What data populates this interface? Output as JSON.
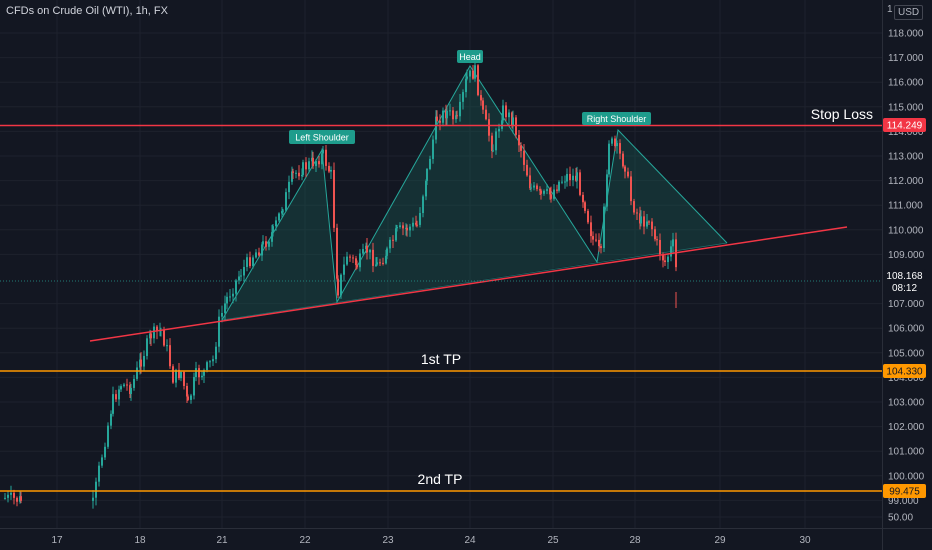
{
  "header": {
    "symbol_title": "CFDs on Crude Oil (WTI), 1h, FX",
    "currency": "USD"
  },
  "colors": {
    "background": "#131722",
    "up": "#26a69a",
    "down": "#ef5350",
    "stop_loss": "#f23645",
    "take_profit": "#ff9800",
    "trendline": "#f23645",
    "pattern_fill": "#1b5e56",
    "pattern_stroke": "#26a69a"
  },
  "price_axis": {
    "ticks": [
      "118.000",
      "117.000",
      "116.000",
      "115.000",
      "114.000",
      "113.000",
      "112.000",
      "111.000",
      "110.000",
      "109.000",
      "107.000",
      "106.000",
      "105.000",
      "104.000",
      "103.000",
      "102.000",
      "101.000",
      "100.000",
      "99.000",
      "50.00"
    ],
    "top_partial": "1"
  },
  "time_axis": {
    "ticks": [
      "17",
      "18",
      "21",
      "22",
      "23",
      "24",
      "25",
      "28",
      "29",
      "30"
    ]
  },
  "current_price": {
    "value": "108.168",
    "countdown": "08:12"
  },
  "levels": {
    "stop_loss": {
      "label": "Stop Loss",
      "price": "114.249"
    },
    "tp1": {
      "label": "1st TP",
      "price": "104.330"
    },
    "tp2": {
      "label": "2nd TP",
      "price": "99.475"
    }
  },
  "pattern_labels": {
    "left_shoulder": "Left Shoulder",
    "head": "Head",
    "right_shoulder": "Right Shoulder"
  }
}
